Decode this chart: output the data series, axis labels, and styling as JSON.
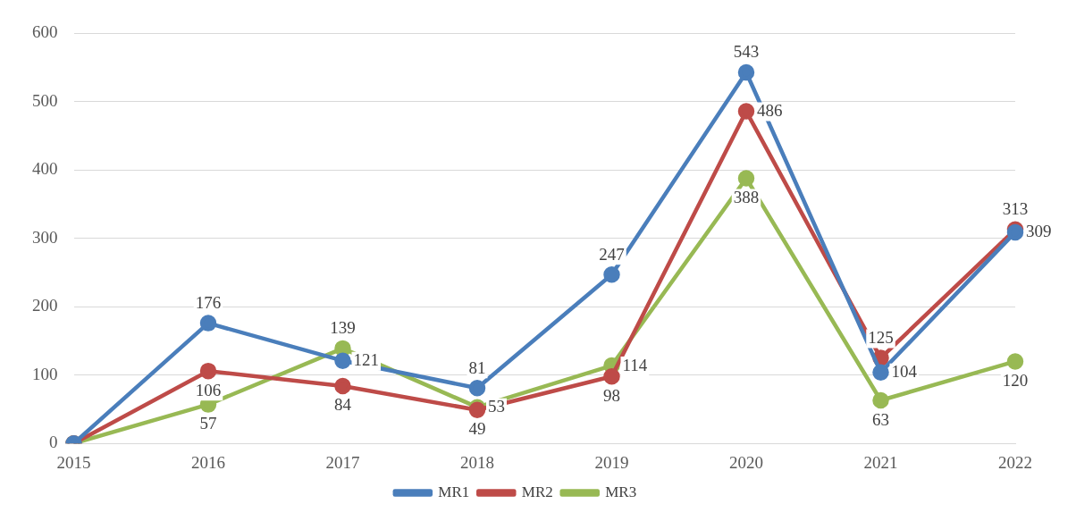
{
  "chart_data": {
    "type": "line",
    "categories": [
      "2015",
      "2016",
      "2017",
      "2018",
      "2019",
      "2020",
      "2021",
      "2022"
    ],
    "series": [
      {
        "name": "MR1",
        "color": "#4a7ebb",
        "values": [
          0,
          176,
          121,
          81,
          247,
          543,
          104,
          309
        ],
        "value_labels": [
          null,
          "176",
          "121",
          "81",
          "247",
          "543",
          "104",
          "309"
        ]
      },
      {
        "name": "MR2",
        "color": "#be4b48",
        "values": [
          0,
          106,
          84,
          49,
          98,
          486,
          125,
          313
        ],
        "value_labels": [
          null,
          "106",
          "84",
          "49",
          "98",
          "486",
          "125",
          "313"
        ]
      },
      {
        "name": "MR3",
        "color": "#98b954",
        "values": [
          0,
          57,
          139,
          53,
          114,
          388,
          63,
          120
        ],
        "value_labels": [
          null,
          "57",
          "139",
          "53",
          "114",
          "388",
          "63",
          "120"
        ]
      }
    ],
    "ylim": [
      0,
      600
    ],
    "yticks": [
      0,
      100,
      200,
      300,
      400,
      500,
      600
    ],
    "grid": "y",
    "legend": "bottom",
    "marker": "circle",
    "line_style": "solid"
  }
}
